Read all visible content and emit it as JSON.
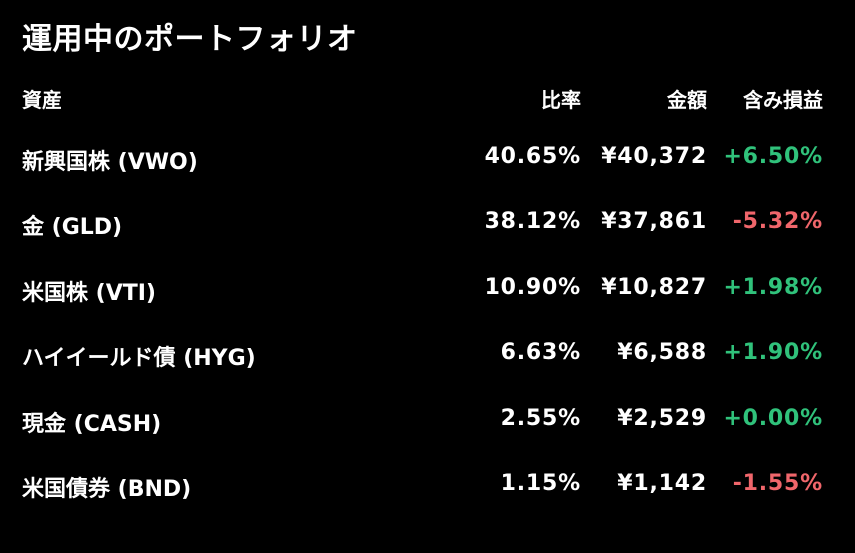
{
  "title": "運用中のポートフォリオ",
  "headers": {
    "asset": "資産",
    "ratio": "比率",
    "amount": "金額",
    "unrealized_pl": "含み損益"
  },
  "colors": {
    "background": "#000000",
    "text": "#ffffff",
    "positive": "#30c27b",
    "negative": "#f0666b"
  },
  "rows": [
    {
      "asset": "新興国株 (VWO)",
      "ratio": "40.65%",
      "amount": "¥40,372",
      "pl": "+6.50%",
      "pl_sign": "positive"
    },
    {
      "asset": "金 (GLD)",
      "ratio": "38.12%",
      "amount": "¥37,861",
      "pl": "-5.32%",
      "pl_sign": "negative"
    },
    {
      "asset": "米国株 (VTI)",
      "ratio": "10.90%",
      "amount": "¥10,827",
      "pl": "+1.98%",
      "pl_sign": "positive"
    },
    {
      "asset": "ハイイールド債 (HYG)",
      "ratio": "6.63%",
      "amount": "¥6,588",
      "pl": "+1.90%",
      "pl_sign": "positive"
    },
    {
      "asset": "現金 (CASH)",
      "ratio": "2.55%",
      "amount": "¥2,529",
      "pl": "+0.00%",
      "pl_sign": "positive"
    },
    {
      "asset": "米国債券 (BND)",
      "ratio": "1.15%",
      "amount": "¥1,142",
      "pl": "-1.55%",
      "pl_sign": "negative"
    }
  ]
}
